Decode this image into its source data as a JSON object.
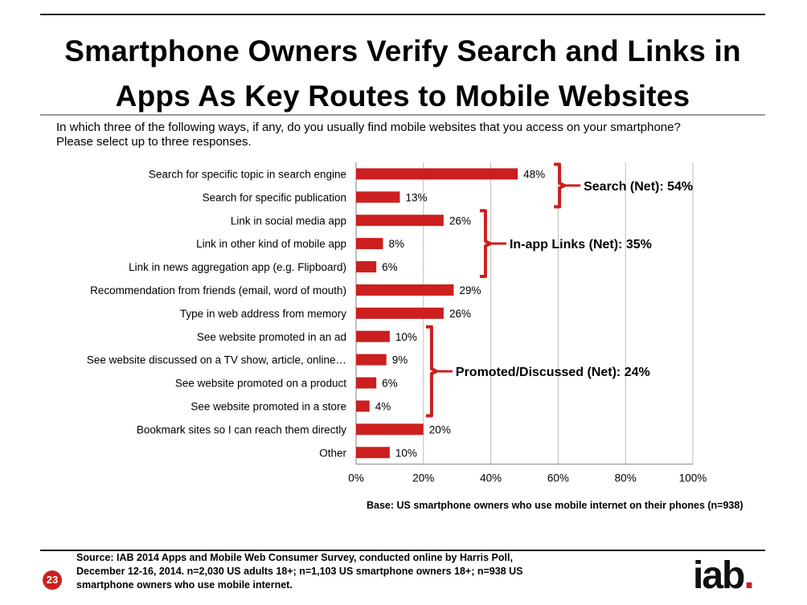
{
  "page": {
    "title_line1": "Smartphone Owners Verify Search and Links in",
    "title_line2": "Apps As Key Routes to Mobile Websites",
    "question_line1": "In which three of the following ways, if any, do you usually find mobile websites that you access on your smartphone?",
    "question_line2": "Please select up to three responses.",
    "base_note": "Base: US smartphone owners who use mobile internet on their phones (n=938)",
    "source_line1": "Source:  IAB 2014 Apps and Mobile Web Consumer Survey, conducted online by Harris Poll,",
    "source_line2": "December 12-16, 2014.  n=2,030 US adults 18+; n=1,103 US smartphone owners 18+; n=938 US",
    "source_line3": "smartphone owners who use mobile internet.",
    "page_number": "23",
    "logo_text": "iab",
    "logo_dot": "."
  },
  "chart_data": {
    "type": "bar",
    "orientation": "horizontal",
    "categories": [
      "Search for specific topic in search engine",
      "Search for specific publication",
      "Link in social media app",
      "Link in other kind of mobile app",
      "Link in news aggregation app (e.g. Flipboard)",
      "Recommendation from friends (email, word of mouth)",
      "Type in web address from memory",
      "See website promoted in an ad",
      "See website discussed on a TV show, article, online…",
      "See website promoted on a product",
      "See website promoted in a store",
      "Bookmark sites so I can reach them directly",
      "Other"
    ],
    "values": [
      48,
      13,
      26,
      8,
      6,
      29,
      26,
      10,
      9,
      6,
      4,
      20,
      10
    ],
    "data_labels": [
      "48%",
      "13%",
      "26%",
      "8%",
      "6%",
      "29%",
      "26%",
      "10%",
      "9%",
      "6%",
      "4%",
      "20%",
      "10%"
    ],
    "xlim": [
      0,
      100
    ],
    "xticks": [
      "0%",
      "20%",
      "40%",
      "60%",
      "80%",
      "100%"
    ],
    "grid": true,
    "bar_color": "#cc1f1f",
    "bracket_color": "#cc1f1f",
    "groups": [
      {
        "label": "Search (Net):  54%",
        "value": 54,
        "first": 0,
        "last": 1
      },
      {
        "label": "In-app Links (Net):  35%",
        "value": 35,
        "first": 2,
        "last": 4
      },
      {
        "label": "Promoted/Discussed (Net):  24%",
        "value": 24,
        "first": 7,
        "last": 10
      }
    ]
  }
}
